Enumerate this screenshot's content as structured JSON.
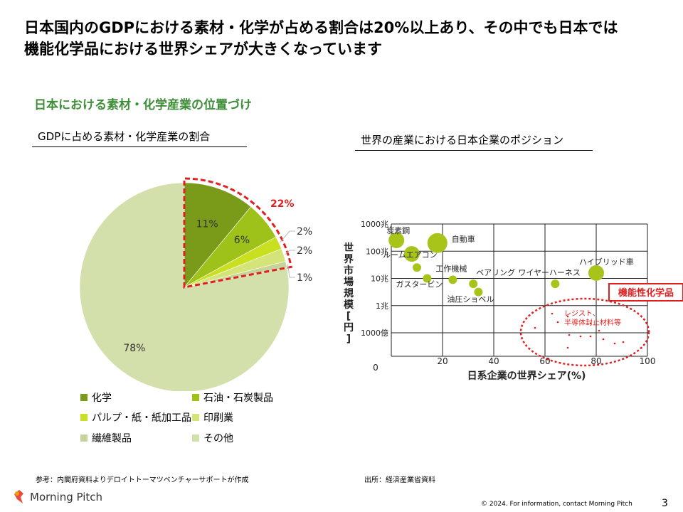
{
  "title": {
    "line1": "日本国内のGDPにおける素材・化学が占める割合は20%以上あり、その中でも日本では",
    "line2": "機能化学品における世界シェアが大きくなっています"
  },
  "section_heading": "日本における素材・化学産業の位置づけ",
  "left_subtitle": "GDPに占める素材・化学産業の割合",
  "right_subtitle": "世界の産業における日本企業のポジション",
  "highlight_total_label": "22%",
  "highlight_color": "#e02020",
  "chart_data": [
    {
      "type": "pie",
      "title": "GDPに占める素材・化学産業の割合",
      "slices": [
        {
          "label": "化学",
          "value": 11,
          "text": "11%",
          "color": "#7a9a1a"
        },
        {
          "label": "石油・石炭製品",
          "value": 6,
          "text": "6%",
          "color": "#9fc21a"
        },
        {
          "label": "パルプ・紙・紙加工品",
          "value": 2,
          "text": "2%",
          "color": "#c8e020"
        },
        {
          "label": "印刷業",
          "value": 2,
          "text": "2%",
          "color": "#d5e478"
        },
        {
          "label": "繊維製品",
          "value": 1,
          "text": "1%",
          "color": "#c6d49a"
        },
        {
          "label": "その他",
          "value": 78,
          "text": "78%",
          "color": "#d4e0ac"
        }
      ]
    },
    {
      "type": "scatter",
      "title": "世界の産業における日本企業のポジション",
      "xlabel": "日系企業の世界シェア(%)",
      "ylabel": "世界市場規模[円]",
      "x_ticks": [
        "0",
        "20",
        "40",
        "60",
        "80",
        "100"
      ],
      "y_ticks": [
        "1000兆",
        "100兆",
        "10兆",
        "1兆",
        "1000億"
      ],
      "y_scale": "log",
      "points": [
        {
          "label": "炭素鋼",
          "x": 2,
          "y_log": 14.4,
          "size": "medium"
        },
        {
          "label": "",
          "x": 8,
          "y_log": 13.9,
          "size": "medium"
        },
        {
          "label": "自動車",
          "x": 18,
          "y_log": 14.3,
          "size": "large"
        },
        {
          "label": "ルームエアコン",
          "x": 10,
          "y_log": 13.4,
          "size": "small"
        },
        {
          "label": "ガスタービン",
          "x": 14,
          "y_log": 13.0,
          "size": "small"
        },
        {
          "label": "工作機械",
          "x": 24,
          "y_log": 12.95,
          "size": "small"
        },
        {
          "label": "ベアリング",
          "x": 32,
          "y_log": 12.8,
          "size": "small"
        },
        {
          "label": "油圧ショベル",
          "x": 34,
          "y_log": 12.5,
          "size": "small"
        },
        {
          "label": "ワイヤーハーネス",
          "x": 64,
          "y_log": 12.8,
          "size": "small"
        },
        {
          "label": "ハイブリッド車",
          "x": 80,
          "y_log": 13.2,
          "size": "medium"
        }
      ],
      "cluster_label": "レジスト、半導体封止材料等",
      "cluster_tag": "機能性化学品"
    }
  ],
  "legend": [
    "化学",
    "石油・石炭製品",
    "パルプ・紙・紙加工品",
    "印刷業",
    "繊維製品",
    "その他"
  ],
  "notes": {
    "left": "参考：内閣府資料よりデロイトトーマツベンチャーサポートが作成",
    "right": "出所：経済産業省資料"
  },
  "footer": {
    "logo_text": "Morning Pitch",
    "copyright": "© 2024.  For information,  contact Morning  Pitch",
    "page": "3"
  }
}
